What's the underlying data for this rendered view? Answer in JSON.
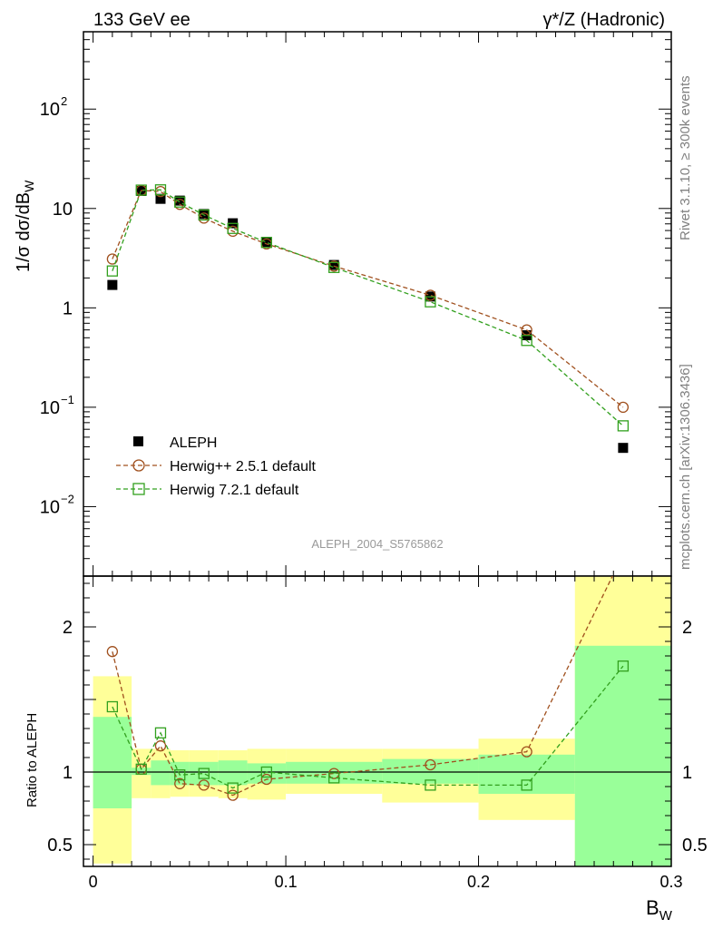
{
  "header": {
    "left_title": "133 GeV ee",
    "right_title": "γ*/Z (Hadronic)"
  },
  "side_labels": {
    "rivet": "Rivet 3.1.10, ≥ 300k events",
    "mcplots": "mcplots.cern.ch [arXiv:1306.3436]"
  },
  "analysis_id": "ALEPH_2004_S5765862",
  "main_panel": {
    "ylabel": "1/σ  dσ/dB_W",
    "yscale": "log",
    "ylim": [
      0.002,
      600
    ],
    "yticks": [
      {
        "value": 0.01,
        "label": "10",
        "exp": "−2"
      },
      {
        "value": 0.1,
        "label": "10",
        "exp": "−1"
      },
      {
        "value": 1,
        "label": "1",
        "exp": ""
      },
      {
        "value": 10,
        "label": "10",
        "exp": ""
      },
      {
        "value": 100,
        "label": "10",
        "exp": "2"
      }
    ]
  },
  "ratio_panel": {
    "ylabel": "Ratio to ALEPH",
    "ylim": [
      0.35,
      2.35
    ],
    "yticks": [
      {
        "value": 0.5,
        "label": "0.5"
      },
      {
        "value": 1,
        "label": "1"
      },
      {
        "value": 2,
        "label": "2"
      }
    ]
  },
  "x_axis": {
    "label": "B",
    "label_sub": "W",
    "xlim": [
      -0.005,
      0.3
    ],
    "ticks": [
      {
        "value": 0,
        "label": "0"
      },
      {
        "value": 0.1,
        "label": "0.1"
      },
      {
        "value": 0.2,
        "label": "0.2"
      },
      {
        "value": 0.3,
        "label": "0.3"
      }
    ]
  },
  "legend": {
    "items": [
      {
        "label": "ALEPH"
      },
      {
        "label": "Herwig++ 2.5.1 default"
      },
      {
        "label": "Herwig 7.2.1 default"
      }
    ]
  },
  "colors": {
    "data": "#000000",
    "herwigpp": "#a0501e",
    "herwig7": "#32a01e",
    "band_inner": "#99ff99",
    "band_outer": "#ffff99",
    "side_text": "#808080"
  },
  "chart_data": {
    "type": "scatter",
    "title": "133 GeV ee — γ*/Z (Hadronic)",
    "xlabel": "B_W",
    "ylabel": "1/σ dσ/dB_W",
    "bins": [
      {
        "lo": 0.0,
        "hi": 0.02,
        "x": 0.01
      },
      {
        "lo": 0.02,
        "hi": 0.03,
        "x": 0.025
      },
      {
        "lo": 0.03,
        "hi": 0.04,
        "x": 0.035
      },
      {
        "lo": 0.04,
        "hi": 0.05,
        "x": 0.045
      },
      {
        "lo": 0.05,
        "hi": 0.065,
        "x": 0.0575
      },
      {
        "lo": 0.065,
        "hi": 0.08,
        "x": 0.0725
      },
      {
        "lo": 0.08,
        "hi": 0.1,
        "x": 0.09
      },
      {
        "lo": 0.1,
        "hi": 0.15,
        "x": 0.125
      },
      {
        "lo": 0.15,
        "hi": 0.2,
        "x": 0.175
      },
      {
        "lo": 0.2,
        "hi": 0.25,
        "x": 0.225
      },
      {
        "lo": 0.25,
        "hi": 0.3,
        "x": 0.275
      }
    ],
    "series": [
      {
        "name": "ALEPH",
        "key": "data",
        "marker": "filled-square",
        "values": [
          1.7,
          15.0,
          12.5,
          12.0,
          8.8,
          7.1,
          4.6,
          2.7,
          1.3,
          0.53,
          0.039
        ]
      },
      {
        "name": "Herwig++ 2.5.1 default",
        "key": "herwigpp",
        "marker": "open-circle",
        "values": [
          3.1,
          15.2,
          14.8,
          11.0,
          8.0,
          5.9,
          4.4,
          2.63,
          1.34,
          0.6,
          0.1
        ]
      },
      {
        "name": "Herwig 7.2.1 default",
        "key": "herwig7",
        "marker": "open-square",
        "values": [
          2.35,
          15.3,
          15.4,
          11.6,
          8.6,
          6.3,
          4.55,
          2.55,
          1.15,
          0.47,
          0.065
        ]
      }
    ],
    "ratios": {
      "herwigpp": [
        1.83,
        1.02,
        1.18,
        0.92,
        0.91,
        0.84,
        0.95,
        0.99,
        1.05,
        1.14,
        2.5
      ],
      "herwig7": [
        1.45,
        1.02,
        1.27,
        0.98,
        0.99,
        0.89,
        1.0,
        0.96,
        0.91,
        0.91,
        1.73
      ]
    },
    "uncertainty_bands": {
      "inner": [
        [
          0.75,
          1.38
        ],
        [
          0.98,
          1.03
        ],
        [
          0.91,
          1.08
        ],
        [
          0.91,
          1.07
        ],
        [
          0.91,
          1.07
        ],
        [
          0.91,
          1.08
        ],
        [
          0.92,
          1.06
        ],
        [
          0.92,
          1.07
        ],
        [
          0.92,
          1.09
        ],
        [
          0.85,
          1.12
        ],
        [
          0.35,
          1.87
        ]
      ],
      "outer": [
        [
          0.37,
          1.66
        ],
        [
          0.82,
          1.16
        ],
        [
          0.82,
          1.16
        ],
        [
          0.83,
          1.15
        ],
        [
          0.83,
          1.15
        ],
        [
          0.82,
          1.15
        ],
        [
          0.81,
          1.16
        ],
        [
          0.85,
          1.16
        ],
        [
          0.79,
          1.16
        ],
        [
          0.67,
          1.23
        ],
        [
          0.35,
          2.35
        ]
      ]
    }
  }
}
